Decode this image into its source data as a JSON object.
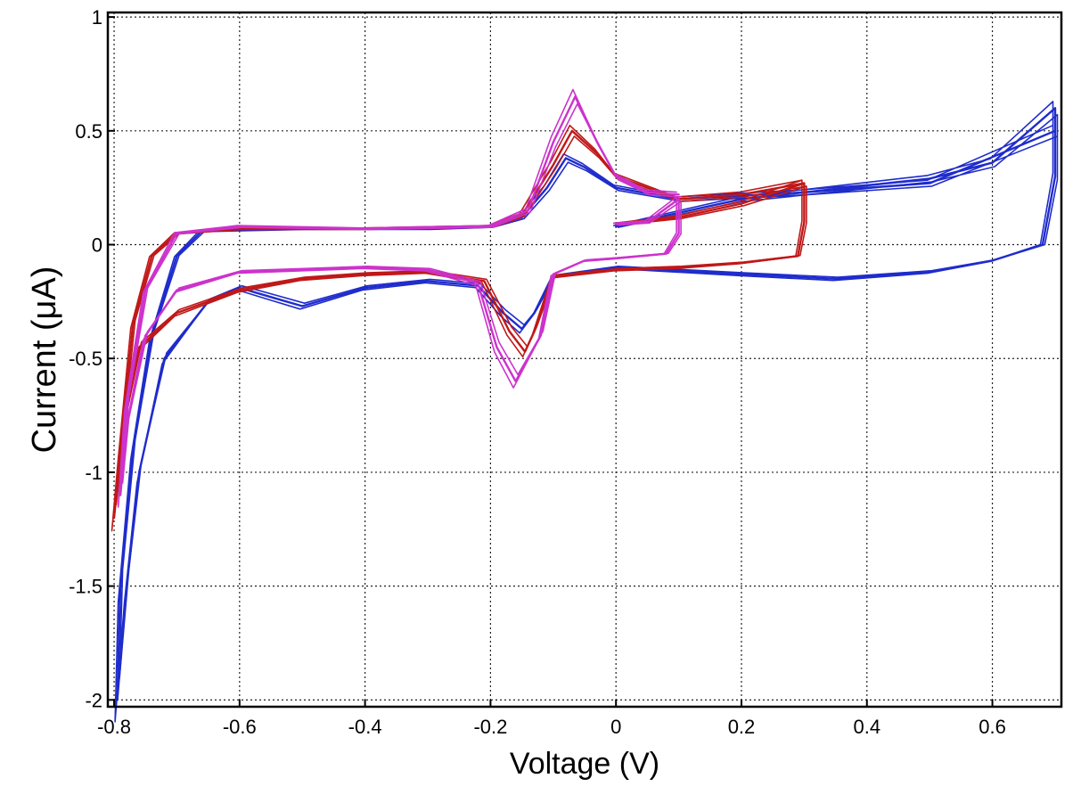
{
  "chart_data": {
    "type": "line",
    "title": "",
    "xlabel": "Voltage (V)",
    "ylabel": "Current (μA)",
    "xlim": [
      -0.81,
      0.71
    ],
    "ylim": [
      -2.03,
      1.02
    ],
    "xticks": [
      -0.8,
      -0.6,
      -0.4,
      -0.2,
      0,
      0.2,
      0.4,
      0.6
    ],
    "xtick_labels": [
      "-0.8",
      "-0.6",
      "-0.4",
      "-0.2",
      "0",
      "0.2",
      "0.4",
      "0.6"
    ],
    "yticks": [
      1,
      0.5,
      0,
      -0.5,
      -1,
      -1.5,
      -2
    ],
    "ytick_labels": [
      "1",
      "0.5",
      "0",
      "-0.5",
      "-1",
      "-1.5",
      "-2"
    ],
    "grid": true,
    "legend": "none",
    "series": [
      {
        "color": "#1f2ccc",
        "points": [
          [
            0,
            0.08
          ],
          [
            0.1,
            0.14
          ],
          [
            0.2,
            0.2
          ],
          [
            0.3,
            0.23
          ],
          [
            0.4,
            0.26
          ],
          [
            0.5,
            0.29
          ],
          [
            0.6,
            0.36
          ],
          [
            0.7,
            0.6
          ],
          [
            0.7,
            0.3
          ],
          [
            0.68,
            0.0
          ],
          [
            0.6,
            -0.07
          ],
          [
            0.5,
            -0.12
          ],
          [
            0.35,
            -0.15
          ],
          [
            0.2,
            -0.13
          ],
          [
            0,
            -0.1
          ],
          [
            -0.1,
            -0.14
          ],
          [
            -0.13,
            -0.3
          ],
          [
            -0.15,
            -0.37
          ],
          [
            -0.18,
            -0.3
          ],
          [
            -0.22,
            -0.18
          ],
          [
            -0.3,
            -0.16
          ],
          [
            -0.4,
            -0.19
          ],
          [
            -0.5,
            -0.27
          ],
          [
            -0.55,
            -0.23
          ],
          [
            -0.6,
            -0.19
          ],
          [
            -0.65,
            -0.25
          ],
          [
            -0.72,
            -0.5
          ],
          [
            -0.76,
            -1.0
          ],
          [
            -0.78,
            -1.5
          ],
          [
            -0.795,
            -2.0
          ],
          [
            -0.79,
            -1.5
          ],
          [
            -0.77,
            -0.9
          ],
          [
            -0.74,
            -0.4
          ],
          [
            -0.7,
            -0.05
          ],
          [
            -0.66,
            0.06
          ],
          [
            -0.5,
            0.07
          ],
          [
            -0.3,
            0.07
          ],
          [
            -0.2,
            0.08
          ],
          [
            -0.15,
            0.12
          ],
          [
            -0.11,
            0.25
          ],
          [
            -0.08,
            0.38
          ],
          [
            -0.05,
            0.34
          ],
          [
            0,
            0.25
          ],
          [
            0.1,
            0.2
          ],
          [
            0.3,
            0.23
          ],
          [
            0.5,
            0.27
          ],
          [
            0.7,
            0.5
          ]
        ]
      },
      {
        "color": "#c01818",
        "points": [
          [
            0,
            0.09
          ],
          [
            0.1,
            0.12
          ],
          [
            0.2,
            0.18
          ],
          [
            0.3,
            0.27
          ],
          [
            0.3,
            0.1
          ],
          [
            0.29,
            -0.05
          ],
          [
            0.2,
            -0.08
          ],
          [
            0.1,
            -0.1
          ],
          [
            0,
            -0.11
          ],
          [
            -0.1,
            -0.14
          ],
          [
            -0.13,
            -0.38
          ],
          [
            -0.145,
            -0.47
          ],
          [
            -0.17,
            -0.38
          ],
          [
            -0.21,
            -0.16
          ],
          [
            -0.3,
            -0.12
          ],
          [
            -0.4,
            -0.13
          ],
          [
            -0.5,
            -0.15
          ],
          [
            -0.6,
            -0.2
          ],
          [
            -0.7,
            -0.3
          ],
          [
            -0.76,
            -0.45
          ],
          [
            -0.785,
            -0.8
          ],
          [
            -0.8,
            -1.2
          ],
          [
            -0.79,
            -0.9
          ],
          [
            -0.77,
            -0.35
          ],
          [
            -0.74,
            -0.05
          ],
          [
            -0.7,
            0.05
          ],
          [
            -0.6,
            0.07
          ],
          [
            -0.4,
            0.07
          ],
          [
            -0.2,
            0.08
          ],
          [
            -0.15,
            0.13
          ],
          [
            -0.1,
            0.35
          ],
          [
            -0.07,
            0.5
          ],
          [
            -0.03,
            0.4
          ],
          [
            0,
            0.3
          ],
          [
            0.1,
            0.2
          ],
          [
            0.2,
            0.22
          ],
          [
            0.3,
            0.27
          ]
        ]
      },
      {
        "color": "#cc33cc",
        "points": [
          [
            0,
            0.09
          ],
          [
            0.05,
            0.1
          ],
          [
            0.1,
            0.2
          ],
          [
            0.1,
            0.05
          ],
          [
            0.08,
            -0.04
          ],
          [
            0,
            -0.06
          ],
          [
            -0.05,
            -0.07
          ],
          [
            -0.1,
            -0.13
          ],
          [
            -0.12,
            -0.4
          ],
          [
            -0.16,
            -0.6
          ],
          [
            -0.19,
            -0.45
          ],
          [
            -0.22,
            -0.17
          ],
          [
            -0.3,
            -0.11
          ],
          [
            -0.4,
            -0.1
          ],
          [
            -0.5,
            -0.11
          ],
          [
            -0.6,
            -0.12
          ],
          [
            -0.7,
            -0.2
          ],
          [
            -0.75,
            -0.4
          ],
          [
            -0.78,
            -0.8
          ],
          [
            -0.79,
            -1.1
          ],
          [
            -0.78,
            -0.7
          ],
          [
            -0.75,
            -0.2
          ],
          [
            -0.7,
            0.05
          ],
          [
            -0.6,
            0.08
          ],
          [
            -0.4,
            0.07
          ],
          [
            -0.2,
            0.08
          ],
          [
            -0.14,
            0.15
          ],
          [
            -0.1,
            0.45
          ],
          [
            -0.065,
            0.65
          ],
          [
            -0.03,
            0.45
          ],
          [
            0,
            0.3
          ],
          [
            0.05,
            0.23
          ],
          [
            0.1,
            0.22
          ]
        ]
      }
    ]
  }
}
